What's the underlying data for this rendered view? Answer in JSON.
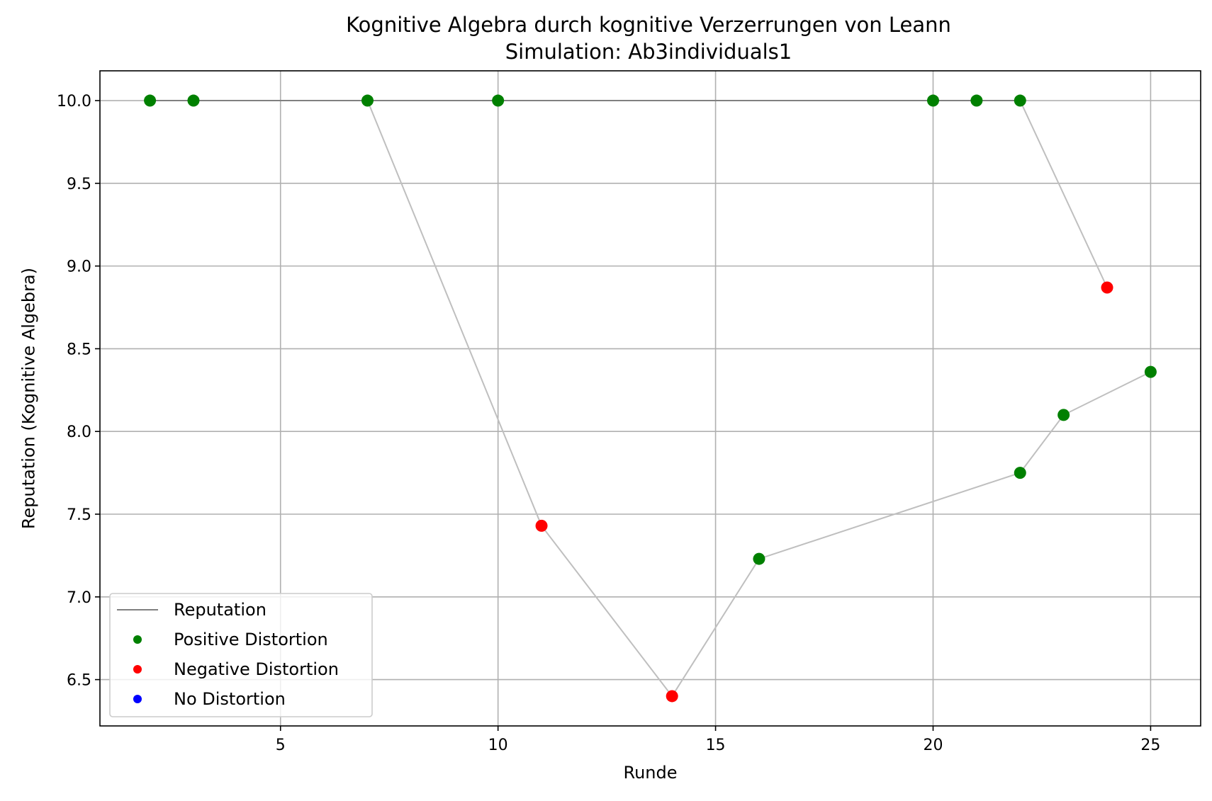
{
  "chart_data": {
    "type": "line",
    "title": "Kognitive Algebra durch kognitive Verzerrungen von Leann",
    "subtitle": "Simulation: Ab3individuals1",
    "xlabel": "Runde",
    "ylabel": "Reputation (Kognitive Algebra)",
    "xlim": [
      0.85,
      26.15
    ],
    "ylim": [
      6.22,
      10.18
    ],
    "xticks": [
      5,
      10,
      15,
      20,
      25
    ],
    "yticks": [
      6.5,
      7.0,
      7.5,
      8.0,
      8.5,
      9.0,
      9.5,
      10.0
    ],
    "xtick_labels": [
      "5",
      "10",
      "15",
      "20",
      "25"
    ],
    "ytick_labels": [
      "6.5",
      "7.0",
      "7.5",
      "8.0",
      "8.5",
      "9.0",
      "9.5",
      "10.0"
    ],
    "grid": true,
    "legend_position": "lower-left",
    "series": [
      {
        "name": "Reputation",
        "style": "line",
        "color": "#808080",
        "x": [
          2,
          3,
          7,
          10,
          20,
          21,
          22
        ],
        "y": [
          10.0,
          10.0,
          10.0,
          10.0,
          10.0,
          10.0,
          10.0
        ]
      },
      {
        "name": "Positive Distortion",
        "style": "marker",
        "color": "#008000",
        "x": [
          2,
          3,
          7,
          10,
          20,
          21,
          22,
          16,
          22,
          23,
          25
        ],
        "y": [
          10.0,
          10.0,
          10.0,
          10.0,
          10.0,
          10.0,
          10.0,
          7.23,
          7.75,
          8.1,
          8.36
        ]
      },
      {
        "name": "Negative Distortion",
        "style": "marker",
        "color": "#ff0000",
        "x": [
          11,
          14,
          24
        ],
        "y": [
          7.43,
          6.4,
          8.87
        ]
      },
      {
        "name": "No Distortion",
        "style": "marker",
        "color": "#0000ff",
        "x": [],
        "y": []
      }
    ],
    "connector_lines": [
      {
        "color": "#bfbfbf",
        "x": [
          7,
          11,
          14,
          16,
          22,
          23,
          25
        ],
        "y": [
          10.0,
          7.43,
          6.4,
          7.23,
          7.75,
          8.1,
          8.36
        ]
      },
      {
        "color": "#bfbfbf",
        "x": [
          22,
          24
        ],
        "y": [
          10.0,
          8.87
        ]
      }
    ],
    "legend": [
      {
        "label": "Reputation",
        "kind": "line",
        "color": "#808080"
      },
      {
        "label": "Positive Distortion",
        "kind": "marker",
        "color": "#008000"
      },
      {
        "label": "Negative Distortion",
        "kind": "marker",
        "color": "#ff0000"
      },
      {
        "label": "No Distortion",
        "kind": "marker",
        "color": "#0000ff"
      }
    ]
  }
}
